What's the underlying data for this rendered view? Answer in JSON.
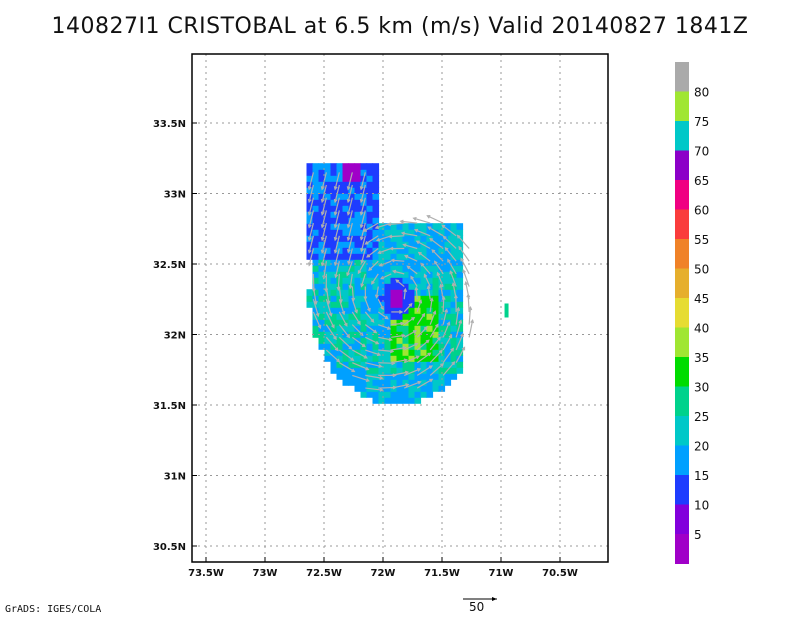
{
  "title": "140827I1 CRISTOBAL at 6.5 km (m/s) Valid 20140827 1841Z",
  "credit": "GrADS: IGES/COLA",
  "lat_ticks": [
    {
      "label": "33.5N",
      "value": 33.5
    },
    {
      "label": "33N",
      "value": 33.0
    },
    {
      "label": "32.5N",
      "value": 32.5
    },
    {
      "label": "32N",
      "value": 32.0
    },
    {
      "label": "31.5N",
      "value": 31.5
    },
    {
      "label": "31N",
      "value": 31.0
    },
    {
      "label": "30.5N",
      "value": 30.5
    }
  ],
  "lon_ticks": [
    {
      "label": "73.5W",
      "value": -73.5
    },
    {
      "label": "73W",
      "value": -73.0
    },
    {
      "label": "72.5W",
      "value": -72.5
    },
    {
      "label": "72W",
      "value": -72.0
    },
    {
      "label": "71.5W",
      "value": -71.5
    },
    {
      "label": "71W",
      "value": -71.0
    },
    {
      "label": "70.5W",
      "value": -70.5
    }
  ],
  "colorbar": {
    "labels": [
      "5",
      "10",
      "15",
      "20",
      "25",
      "30",
      "35",
      "40",
      "45",
      "50",
      "55",
      "60",
      "65",
      "70",
      "75",
      "80"
    ],
    "colors": [
      "#a000c8",
      "#8200dc",
      "#1e3cff",
      "#00a0ff",
      "#00c8c8",
      "#00d28c",
      "#00dc00",
      "#a0e632",
      "#e6dc32",
      "#e6af2d",
      "#f08228",
      "#fa3c3c",
      "#f00082",
      "#8c00c8",
      "#00c8c8",
      "#a0e632",
      "#aaaaaa"
    ]
  },
  "reference_vector": {
    "label": "50"
  },
  "chart_data": {
    "type": "heatmap",
    "title": "140827I1 CRISTOBAL at 6.5 km (m/s) Valid 20140827 1841Z",
    "variable": "wind speed (m/s) with wind vectors",
    "xlim": [
      -73.75,
      -70.25
    ],
    "ylim": [
      30.4,
      33.95
    ],
    "center": {
      "lon": -71.9,
      "lat": 32.28
    },
    "color_levels": [
      5,
      10,
      15,
      20,
      25,
      30,
      35,
      40,
      45,
      50,
      55,
      60,
      65,
      70,
      75,
      80
    ],
    "reference_vector_ms": 50,
    "regions": [
      {
        "name": "north-arm",
        "lon_range": [
          -72.65,
          -72.0
        ],
        "lat_range": [
          32.55,
          33.25
        ],
        "speed_ms": "10-15"
      },
      {
        "name": "eye",
        "lon": -71.9,
        "lat": 32.28,
        "speed_ms": "5-10"
      },
      {
        "name": "eastern-eyewall",
        "lon_range": [
          -71.95,
          -71.55
        ],
        "lat_range": [
          31.85,
          32.3
        ],
        "speed_ms": "25-35"
      },
      {
        "name": "southern-band",
        "lon_range": [
          -72.7,
          -71.3
        ],
        "lat_range": [
          31.35,
          32.1
        ],
        "speed_ms": "15-25"
      },
      {
        "name": "isolated-cell",
        "lon": -70.95,
        "lat": 32.18,
        "speed_ms": "25"
      }
    ]
  }
}
